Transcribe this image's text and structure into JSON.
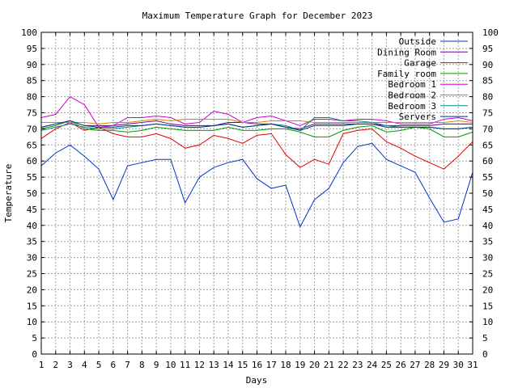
{
  "chart_data": {
    "type": "line",
    "title": "Maximum Temperature Graph for December 2023",
    "xlabel": "Days",
    "ylabel": "Temperature",
    "xlim": [
      1,
      31
    ],
    "ylim": [
      0,
      100
    ],
    "x_ticks": [
      1,
      2,
      3,
      4,
      5,
      6,
      7,
      8,
      9,
      10,
      11,
      12,
      13,
      14,
      15,
      16,
      17,
      18,
      19,
      20,
      21,
      22,
      23,
      24,
      25,
      26,
      27,
      28,
      29,
      30,
      31
    ],
    "y_ticks": [
      0,
      5,
      10,
      15,
      20,
      25,
      30,
      35,
      40,
      45,
      50,
      55,
      60,
      65,
      70,
      75,
      80,
      85,
      90,
      95,
      100
    ],
    "y_ticks_right": true,
    "grid": true,
    "legend": "top-right",
    "x": [
      1,
      2,
      3,
      4,
      5,
      6,
      7,
      8,
      9,
      10,
      11,
      12,
      13,
      14,
      15,
      16,
      17,
      18,
      19,
      20,
      21,
      22,
      23,
      24,
      25,
      26,
      27,
      28,
      29,
      30,
      31
    ],
    "series": [
      {
        "name": "Outside",
        "color": "#0033cc",
        "values": [
          58.5,
          62.5,
          65,
          61.5,
          57.5,
          48,
          58.5,
          59.5,
          60.5,
          60.5,
          47,
          55,
          58,
          59.5,
          60.5,
          54.5,
          51.5,
          52.5,
          39.5,
          48,
          51.5,
          59.5,
          64.5,
          65.5,
          60.5,
          58.5,
          56.5,
          48.5,
          41,
          42,
          56.5
        ]
      },
      {
        "name": "Dining Room",
        "color": "#6a0080",
        "values": [
          70.5,
          71.5,
          72.5,
          71,
          71,
          71,
          71.5,
          72,
          72.5,
          71.5,
          71,
          71,
          71,
          72,
          72,
          71.5,
          71.5,
          70.5,
          70,
          71.5,
          71.5,
          71.5,
          71.5,
          71.5,
          71,
          71,
          71,
          71,
          71.5,
          71.5,
          71.5
        ]
      },
      {
        "name": "Garage",
        "color": "#e00000",
        "values": [
          67,
          70,
          72,
          69.5,
          70.5,
          68.5,
          67.5,
          67.5,
          68.5,
          67,
          64,
          65,
          68,
          67,
          65.5,
          68,
          68.5,
          62,
          58,
          60.5,
          59,
          68.5,
          69.5,
          70,
          66,
          64,
          61.5,
          59.5,
          57.5,
          61.5,
          66
        ]
      },
      {
        "name": "Family room",
        "color": "#009900",
        "values": [
          70,
          71,
          72.5,
          70,
          69.5,
          69.5,
          69,
          69.5,
          70.5,
          70,
          69.5,
          69.5,
          69.5,
          70.5,
          69.5,
          69.5,
          70,
          70,
          69,
          67.5,
          67.5,
          69.5,
          70.5,
          71,
          69,
          69.5,
          70.5,
          70,
          67.5,
          67.5,
          69
        ]
      },
      {
        "name": "Bedroom 1",
        "color": "#cc00cc",
        "values": [
          73.5,
          74.5,
          80,
          77.5,
          70.5,
          71,
          73.5,
          73.5,
          74,
          73.5,
          71.5,
          72,
          75.5,
          74.5,
          72,
          73.5,
          74,
          72.5,
          71,
          73,
          73,
          72.5,
          73,
          73,
          72.5,
          71.5,
          71.5,
          71.5,
          73,
          73.5,
          72.5
        ]
      },
      {
        "name": "Bedroom 2",
        "color": "#cc8800",
        "values": [
          72,
          72,
          72,
          72,
          71.5,
          72,
          72,
          72.5,
          73,
          72.5,
          73,
          73,
          73,
          73,
          72,
          72,
          72.5,
          72.5,
          72.5,
          72,
          72,
          72,
          72,
          72,
          72,
          72,
          72,
          72,
          72,
          72.5,
          72
        ]
      },
      {
        "name": "Bedroom 3",
        "color": "#008888",
        "values": [
          69.5,
          70.5,
          71.5,
          70.5,
          70,
          70,
          70.5,
          71,
          71.5,
          71,
          70.5,
          70.5,
          71,
          71.5,
          70.5,
          71,
          71.5,
          71,
          69.5,
          73.5,
          73.5,
          72.5,
          72.5,
          72,
          71,
          70.5,
          70.5,
          70.5,
          70,
          70,
          70.5
        ]
      },
      {
        "name": "Servers",
        "color": "#003388",
        "values": [
          70.5,
          71.5,
          72.5,
          71,
          70.5,
          70.5,
          71,
          71,
          71.5,
          71,
          70.5,
          70.5,
          71,
          71.5,
          70.5,
          71,
          71.5,
          70.5,
          69.5,
          71,
          71,
          71,
          71.5,
          71.5,
          70.5,
          70.5,
          70.5,
          70.5,
          70,
          70,
          70.5
        ]
      }
    ]
  }
}
